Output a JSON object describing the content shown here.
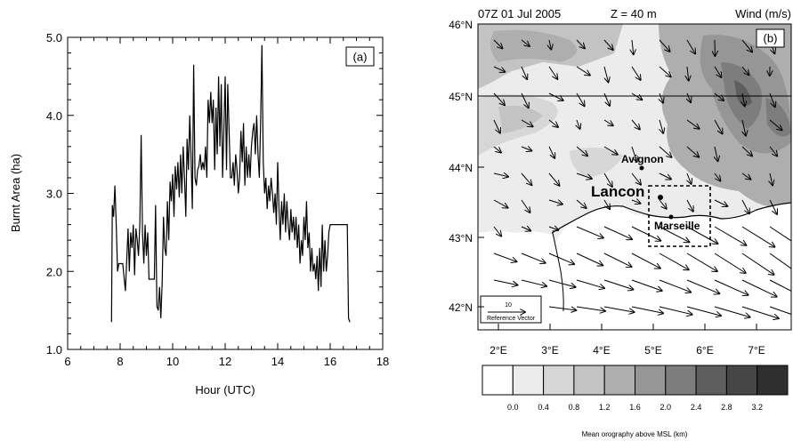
{
  "chart_data": [
    {
      "type": "line",
      "panel_label": "(a)",
      "xlabel": "Hour (UTC)",
      "ylabel": "Burnt Area (ha)",
      "xlim": [
        6,
        18
      ],
      "ylim": [
        1.0,
        5.0
      ],
      "x_ticks": [
        "6",
        "8",
        "10",
        "12",
        "14",
        "16",
        "18"
      ],
      "y_ticks": [
        "1.0",
        "2.0",
        "3.0",
        "4.0",
        "5.0"
      ],
      "series": [
        {
          "x": [
            7.67,
            7.7,
            7.75,
            7.8,
            7.85,
            7.9,
            7.95,
            8.0,
            8.1,
            8.2,
            8.3,
            8.35,
            8.4,
            8.45,
            8.5,
            8.55,
            8.6,
            8.65,
            8.7,
            8.75,
            8.8,
            8.85,
            8.9,
            8.95,
            9.0,
            9.05,
            9.1,
            9.2,
            9.3,
            9.35,
            9.4,
            9.45,
            9.5,
            9.55,
            9.6,
            9.65,
            9.7,
            9.75,
            9.8,
            9.85,
            9.9,
            9.95,
            10.0,
            10.05,
            10.1,
            10.15,
            10.2,
            10.25,
            10.3,
            10.35,
            10.4,
            10.45,
            10.5,
            10.55,
            10.6,
            10.65,
            10.7,
            10.75,
            10.8,
            10.85,
            10.9,
            10.95,
            11.0,
            11.05,
            11.1,
            11.15,
            11.2,
            11.25,
            11.3,
            11.35,
            11.4,
            11.45,
            11.5,
            11.55,
            11.6,
            11.65,
            11.7,
            11.75,
            11.8,
            11.85,
            11.9,
            11.95,
            12.0,
            12.05,
            12.1,
            12.15,
            12.2,
            12.25,
            12.3,
            12.35,
            12.4,
            12.45,
            12.5,
            12.55,
            12.6,
            12.65,
            12.7,
            12.75,
            12.8,
            12.85,
            12.9,
            12.95,
            13.0,
            13.05,
            13.1,
            13.15,
            13.2,
            13.25,
            13.3,
            13.35,
            13.4,
            13.45,
            13.5,
            13.55,
            13.6,
            13.65,
            13.7,
            13.75,
            13.8,
            13.85,
            13.9,
            13.95,
            14.0,
            14.05,
            14.1,
            14.15,
            14.2,
            14.25,
            14.3,
            14.35,
            14.4,
            14.45,
            14.5,
            14.55,
            14.6,
            14.65,
            14.7,
            14.75,
            14.8,
            14.85,
            14.9,
            14.95,
            15.0,
            15.05,
            15.1,
            15.15,
            15.2,
            15.25,
            15.3,
            15.35,
            15.4,
            15.45,
            15.5,
            15.55,
            15.6,
            15.65,
            15.7,
            15.75,
            15.8,
            15.85,
            15.9,
            15.95,
            16.0,
            16.5,
            16.65,
            16.7,
            16.75
          ],
          "y": [
            1.35,
            2.85,
            2.7,
            3.1,
            2.6,
            2.0,
            2.1,
            2.1,
            2.1,
            1.75,
            2.55,
            2.0,
            2.5,
            2.3,
            2.6,
            1.95,
            2.55,
            2.4,
            2.2,
            2.6,
            3.75,
            2.5,
            2.1,
            2.6,
            2.2,
            2.5,
            1.9,
            1.9,
            1.9,
            2.85,
            1.55,
            1.5,
            1.8,
            1.4,
            1.85,
            2.7,
            2.3,
            2.2,
            2.9,
            2.4,
            3.15,
            2.9,
            3.25,
            2.7,
            3.35,
            3.05,
            3.4,
            2.95,
            3.5,
            3.0,
            3.6,
            3.2,
            2.7,
            3.7,
            3.3,
            4.0,
            3.5,
            2.8,
            4.65,
            3.2,
            3.1,
            3.3,
            3.35,
            3.5,
            3.3,
            3.4,
            3.3,
            3.6,
            3.2,
            4.2,
            3.9,
            4.3,
            3.9,
            4.2,
            3.3,
            4.1,
            3.5,
            4.5,
            3.6,
            4.4,
            3.2,
            3.8,
            4.5,
            3.3,
            4.4,
            3.8,
            3.2,
            3.2,
            3.4,
            3.1,
            3.5,
            3.3,
            3.0,
            3.2,
            3.8,
            3.4,
            3.9,
            3.1,
            3.6,
            3.2,
            3.5,
            3.2,
            3.6,
            3.8,
            3.9,
            3.5,
            4.0,
            3.5,
            3.2,
            3.9,
            4.9,
            3.4,
            3.0,
            3.2,
            2.8,
            3.1,
            2.9,
            3.2,
            3.0,
            2.75,
            3.0,
            2.6,
            3.4,
            2.8,
            2.4,
            2.9,
            2.6,
            3.0,
            2.5,
            2.9,
            2.6,
            2.4,
            2.8,
            2.5,
            2.7,
            2.4,
            2.7,
            2.3,
            2.6,
            2.1,
            2.4,
            2.2,
            2.7,
            2.4,
            2.9,
            2.3,
            2.5,
            2.0,
            2.3,
            2.0,
            2.1,
            1.9,
            2.2,
            1.75,
            2.3,
            1.8,
            2.6,
            2.0,
            2.4,
            2.0,
            2.2,
            2.5,
            2.6,
            2.6,
            2.6,
            1.4,
            1.35
          ]
        }
      ]
    },
    {
      "type": "heatmap",
      "panel_label": "(b)",
      "header_left": "07Z 01 Jul 2005",
      "header_mid": "Z = 40 m",
      "header_right": "Wind (m/s)",
      "lat_ticks": [
        "46°N",
        "45°N",
        "44°N",
        "43°N",
        "42°N"
      ],
      "lon_ticks": [
        "2°E",
        "3°E",
        "4°E",
        "5°E",
        "6°E",
        "7°E"
      ],
      "places": [
        "Avignon",
        "Lancon",
        "Marseille"
      ],
      "reference_vector_value": "10",
      "reference_vector_label": "Reference Vector",
      "colorbar_levels": [
        "0.0",
        "0.4",
        "0.8",
        "1.2",
        "1.6",
        "2.0",
        "2.4",
        "2.8",
        "3.2"
      ],
      "colorbar_colors": [
        "#ffffff",
        "#ececec",
        "#d7d7d7",
        "#c3c3c3",
        "#aeaeae",
        "#969696",
        "#7d7d7d",
        "#5e5e5e",
        "#464646",
        "#2f2f2f"
      ],
      "colorbar_label": "Mean orography above MSL (km)"
    }
  ]
}
